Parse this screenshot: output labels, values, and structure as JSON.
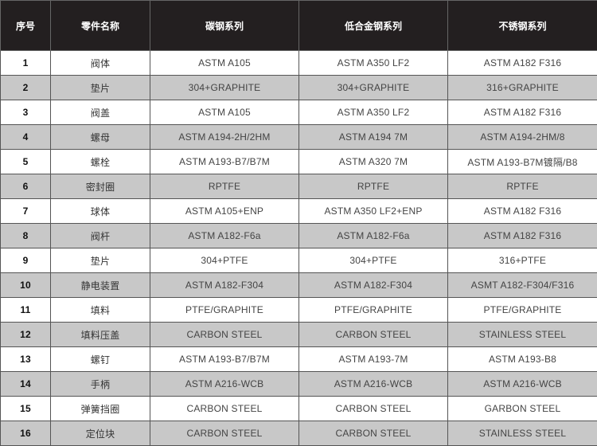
{
  "table": {
    "headers": [
      "序号",
      "零件名称",
      "碳钢系列",
      "低合金钢系列",
      "不锈钢系列"
    ],
    "rows": [
      [
        "1",
        "阀体",
        "ASTM A105",
        "ASTM A350 LF2",
        "ASTM A182 F316"
      ],
      [
        "2",
        "垫片",
        "304+GRAPHITE",
        "304+GRAPHITE",
        "316+GRAPHITE"
      ],
      [
        "3",
        "阀盖",
        "ASTM A105",
        "ASTM A350 LF2",
        "ASTM A182 F316"
      ],
      [
        "4",
        "螺母",
        "ASTM A194-2H/2HM",
        "ASTM A194 7M",
        "ASTM A194-2HM/8"
      ],
      [
        "5",
        "螺栓",
        "ASTM A193-B7/B7M",
        "ASTM A320 7M",
        "ASTM A193-B7M镀隔/B8"
      ],
      [
        "6",
        "密封圈",
        "RPTFE",
        "RPTFE",
        "RPTFE"
      ],
      [
        "7",
        "球体",
        "ASTM A105+ENP",
        "ASTM A350 LF2+ENP",
        "ASTM A182 F316"
      ],
      [
        "8",
        "阀杆",
        "ASTM A182-F6a",
        "ASTM A182-F6a",
        "ASTM A182 F316"
      ],
      [
        "9",
        "垫片",
        "304+PTFE",
        "304+PTFE",
        "316+PTFE"
      ],
      [
        "10",
        "静电装置",
        "ASTM A182-F304",
        "ASTM A182-F304",
        "ASMT A182-F304/F316"
      ],
      [
        "11",
        "填料",
        "PTFE/GRAPHITE",
        "PTFE/GRAPHITE",
        "PTFE/GRAPHITE"
      ],
      [
        "12",
        "填料压盖",
        "CARBON STEEL",
        "CARBON STEEL",
        "STAINLESS STEEL"
      ],
      [
        "13",
        "螺钉",
        "ASTM A193-B7/B7M",
        "ASTM A193-7M",
        "ASTM A193-B8"
      ],
      [
        "14",
        "手柄",
        "ASTM A216-WCB",
        "ASTM A216-WCB",
        "ASTM A216-WCB"
      ],
      [
        "15",
        "弹簧挡圈",
        "CARBON STEEL",
        "CARBON STEEL",
        "GARBON STEEL"
      ],
      [
        "16",
        "定位块",
        "CARBON STEEL",
        "CARBON STEEL",
        "STAINLESS STEEL"
      ]
    ]
  },
  "colors": {
    "header_bg": "#231f20",
    "alt_row_bg": "#c8c8c8"
  }
}
